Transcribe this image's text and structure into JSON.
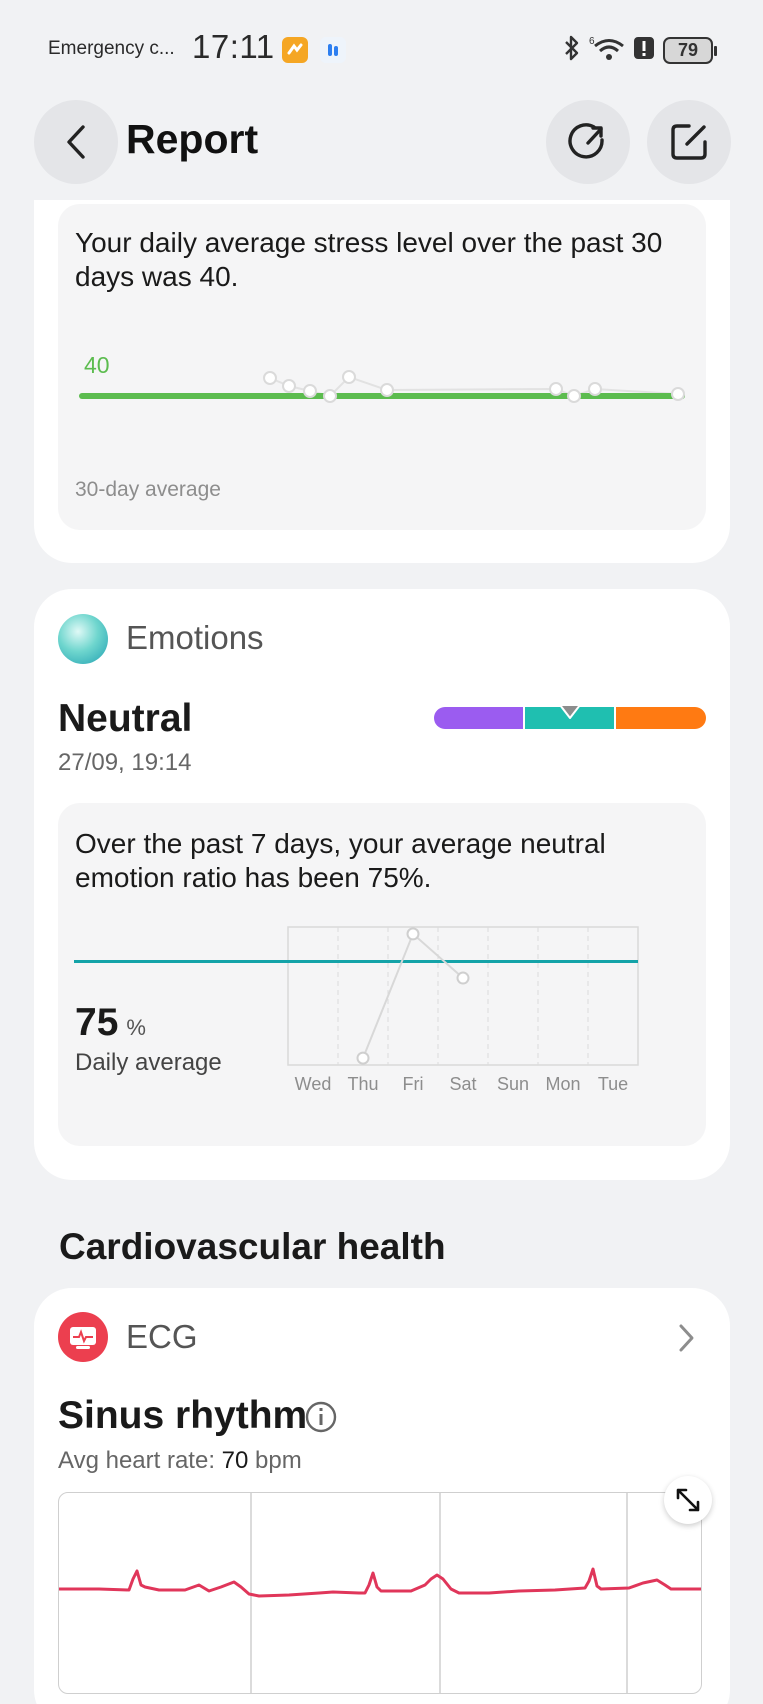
{
  "status_bar": {
    "emergency": "Emergency c...",
    "time": "17:11",
    "battery": "79"
  },
  "header": {
    "title": "Report"
  },
  "stress": {
    "summary": "Your daily average stress level over the past 30 days was 40.",
    "average_value": "40",
    "caption": "30-day average",
    "accent_color": "#5cbc4f"
  },
  "emotions": {
    "title": "Emotions",
    "state": "Neutral",
    "timestamp": "27/09, 19:14",
    "scale_colors": [
      "#9b5cf0",
      "#1fbfb0",
      "#ff7a12"
    ],
    "summary": "Over the past 7 days, your average neutral emotion ratio has been 75%.",
    "average_value": "75",
    "average_unit": "%",
    "average_label": "Daily average",
    "chart_data": {
      "type": "line",
      "categories": [
        "Wed",
        "Thu",
        "Fri",
        "Sat",
        "Sun",
        "Mon",
        "Tue"
      ],
      "values": [
        null,
        5,
        95,
        63,
        null,
        null,
        null
      ],
      "average": 75,
      "ylim": [
        0,
        100
      ]
    }
  },
  "cardiovascular": {
    "section_title": "Cardiovascular health",
    "ecg": {
      "title": "ECG",
      "result": "Sinus rhythm",
      "avg_prefix": "Avg heart rate: ",
      "avg_value": "70",
      "avg_unit": " bpm",
      "trace_color": "#e0365a"
    }
  }
}
